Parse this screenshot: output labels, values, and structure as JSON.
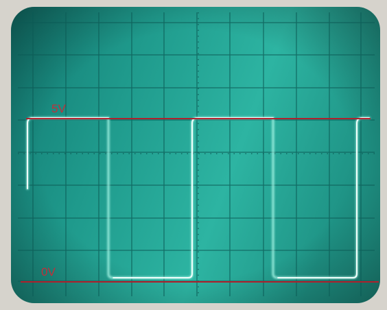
{
  "labels": {
    "high": "5V",
    "low": "0V"
  }
}
